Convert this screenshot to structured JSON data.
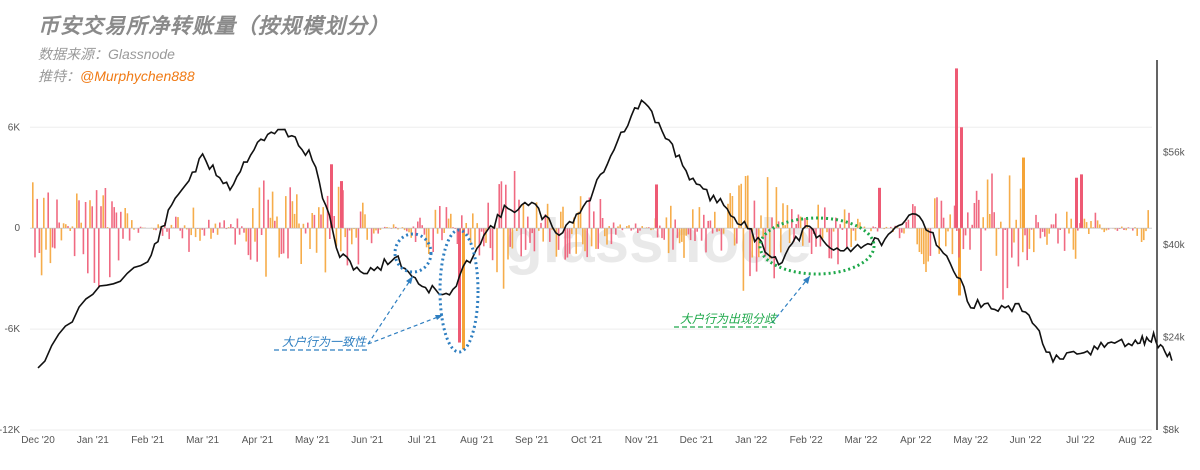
{
  "header": {
    "title": "币安交易所净转账量（按规模划分）",
    "source": "数据来源：Glassnode",
    "author_prefix": "推特：",
    "author_handle": "@Murphychen888"
  },
  "watermark": "glassnode",
  "annotations": {
    "left": "大户行为一致性",
    "right": "大户行为出现分歧"
  },
  "colors": {
    "whale": "#ee5a74",
    "small": "#f5a437",
    "price": "#111111",
    "blue_annotation": "#2f7fc1",
    "green_annotation": "#1ea84a",
    "grid": "#eeeeee"
  },
  "chart_data": {
    "type": "bar",
    "title": "币安交易所净转账量（按规模划分）",
    "x_ticks": [
      "Dec '20",
      "Jan '21",
      "Feb '21",
      "Mar '21",
      "Apr '21",
      "May '21",
      "Jun '21",
      "Jul '21",
      "Aug '21",
      "Sep '21",
      "Oct '21",
      "Nov '21",
      "Dec '21",
      "Jan '22",
      "Feb '22",
      "Mar '22",
      "Apr '22",
      "May '22",
      "Jun '22",
      "Jul '22",
      "Aug '22"
    ],
    "y_left_ticks": [
      "6K",
      "0",
      "-6K",
      "-12K"
    ],
    "y_left_values": [
      6000,
      0,
      -6000,
      -12000
    ],
    "ylim_left": [
      -12000,
      10000
    ],
    "y_right_ticks": [
      "$56k",
      "$40k",
      "$24k",
      "$8k"
    ],
    "y_right_values": [
      56000,
      40000,
      24000,
      8000
    ],
    "ylim_right": [
      8000,
      72000
    ],
    "legend": "none",
    "grid": true,
    "series": [
      {
        "kind": "line",
        "axis": "right",
        "points": [
          [
            "Dec '20",
            19000
          ],
          [
            "Jan '21",
            32000
          ],
          [
            "Feb '21",
            37000
          ],
          [
            "Feb '21",
            48000
          ],
          [
            "Mar '21",
            55000
          ],
          [
            "Mar '21",
            50000
          ],
          [
            "Apr '21",
            58000
          ],
          [
            "Apr '21",
            60000
          ],
          [
            "May '21",
            55000
          ],
          [
            "May '21",
            38000
          ],
          [
            "Jun '21",
            35000
          ],
          [
            "Jun '21",
            38000
          ],
          [
            "Jul '21",
            33000
          ],
          [
            "Jul '21",
            31000
          ],
          [
            "Aug '21",
            40000
          ],
          [
            "Aug '21",
            46000
          ],
          [
            "Sep '21",
            47000
          ],
          [
            "Sep '21",
            42000
          ],
          [
            "Oct '21",
            47000
          ],
          [
            "Oct '21",
            57000
          ],
          [
            "Nov '21",
            65000
          ],
          [
            "Nov '21",
            58000
          ],
          [
            "Dec '21",
            50000
          ],
          [
            "Dec '21",
            47000
          ],
          [
            "Jan '22",
            42000
          ],
          [
            "Jan '22",
            37000
          ],
          [
            "Feb '22",
            43000
          ],
          [
            "Feb '22",
            39000
          ],
          [
            "Mar '22",
            40000
          ],
          [
            "Mar '22",
            41000
          ],
          [
            "Apr '22",
            46000
          ],
          [
            "Apr '22",
            39000
          ],
          [
            "May '22",
            30000
          ],
          [
            "May '22",
            29000
          ],
          [
            "Jun '22",
            29000
          ],
          [
            "Jun '22",
            20000
          ],
          [
            "Jul '22",
            21000
          ],
          [
            "Jul '22",
            23000
          ],
          [
            "Aug '22",
            23000
          ],
          [
            "Aug '22",
            24000
          ],
          [
            "Aug '22",
            20000
          ]
        ]
      }
    ]
  }
}
